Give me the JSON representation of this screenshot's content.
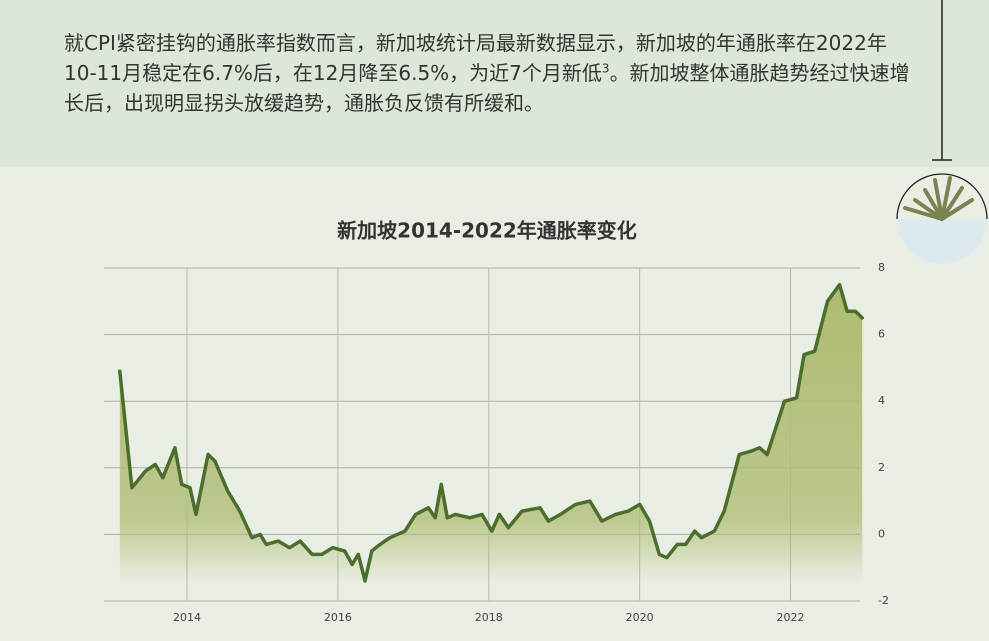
{
  "header": {
    "text_before": "就CPI紧密挂钩的通胀率指数而言，新加坡统计局最新数据显示，新加坡的年通胀率在2022年10-11月稳定在6.7%后，在12月降至6.5%，为近7个月新低",
    "superscript": "3",
    "text_after": "。新加坡整体通胀趋势经过快速增长后，出现明显拐头放缓趋势，通胀负反馈有所缓和。"
  },
  "chart_data": {
    "type": "line",
    "title": "新加坡2014-2022年通胀率变化",
    "x": [
      2013.11,
      2013.27,
      2013.45,
      2013.58,
      2013.68,
      2013.84,
      2013.93,
      2014.04,
      2014.12,
      2014.28,
      2014.37,
      2014.54,
      2014.7,
      2014.86,
      2014.97,
      2015.05,
      2015.21,
      2015.36,
      2015.5,
      2015.66,
      2015.79,
      2015.93,
      2016.09,
      2016.19,
      2016.27,
      2016.36,
      2016.45,
      2016.56,
      2016.69,
      2016.89,
      2017.03,
      2017.2,
      2017.29,
      2017.37,
      2017.45,
      2017.56,
      2017.75,
      2017.91,
      2018.04,
      2018.14,
      2018.26,
      2018.44,
      2018.68,
      2018.79,
      2018.95,
      2019.15,
      2019.34,
      2019.5,
      2019.68,
      2019.85,
      2020.0,
      2020.13,
      2020.26,
      2020.36,
      2020.5,
      2020.61,
      2020.73,
      2020.82,
      2020.99,
      2021.12,
      2021.32,
      2021.48,
      2021.59,
      2021.69,
      2021.92,
      2022.08,
      2022.18,
      2022.32,
      2022.49,
      2022.65,
      2022.75,
      2022.86,
      2022.95
    ],
    "values": [
      4.9,
      1.4,
      1.9,
      2.1,
      1.7,
      2.6,
      1.5,
      1.4,
      0.6,
      2.4,
      2.2,
      1.3,
      0.7,
      -0.1,
      0.0,
      -0.3,
      -0.2,
      -0.4,
      -0.2,
      -0.6,
      -0.6,
      -0.4,
      -0.5,
      -0.9,
      -0.6,
      -1.4,
      -0.5,
      -0.3,
      -0.1,
      0.1,
      0.6,
      0.8,
      0.5,
      1.5,
      0.5,
      0.6,
      0.5,
      0.6,
      0.1,
      0.6,
      0.2,
      0.7,
      0.8,
      0.4,
      0.6,
      0.9,
      1.0,
      0.4,
      0.6,
      0.7,
      0.9,
      0.4,
      -0.6,
      -0.7,
      -0.3,
      -0.3,
      0.1,
      -0.1,
      0.1,
      0.7,
      2.4,
      2.5,
      2.6,
      2.4,
      4.0,
      4.1,
      5.4,
      5.5,
      7.0,
      7.5,
      6.7,
      6.7,
      6.5
    ],
    "color": "#4b6e2c",
    "fill_color": "#aebb70",
    "xlim": [
      2012.9,
      2023.0
    ],
    "xticks": [
      2014,
      2016,
      2018,
      2020,
      2022
    ],
    "ylim": [
      -2,
      8
    ],
    "yticks": [
      -2,
      0,
      2,
      4,
      6,
      8
    ],
    "grid": true
  }
}
